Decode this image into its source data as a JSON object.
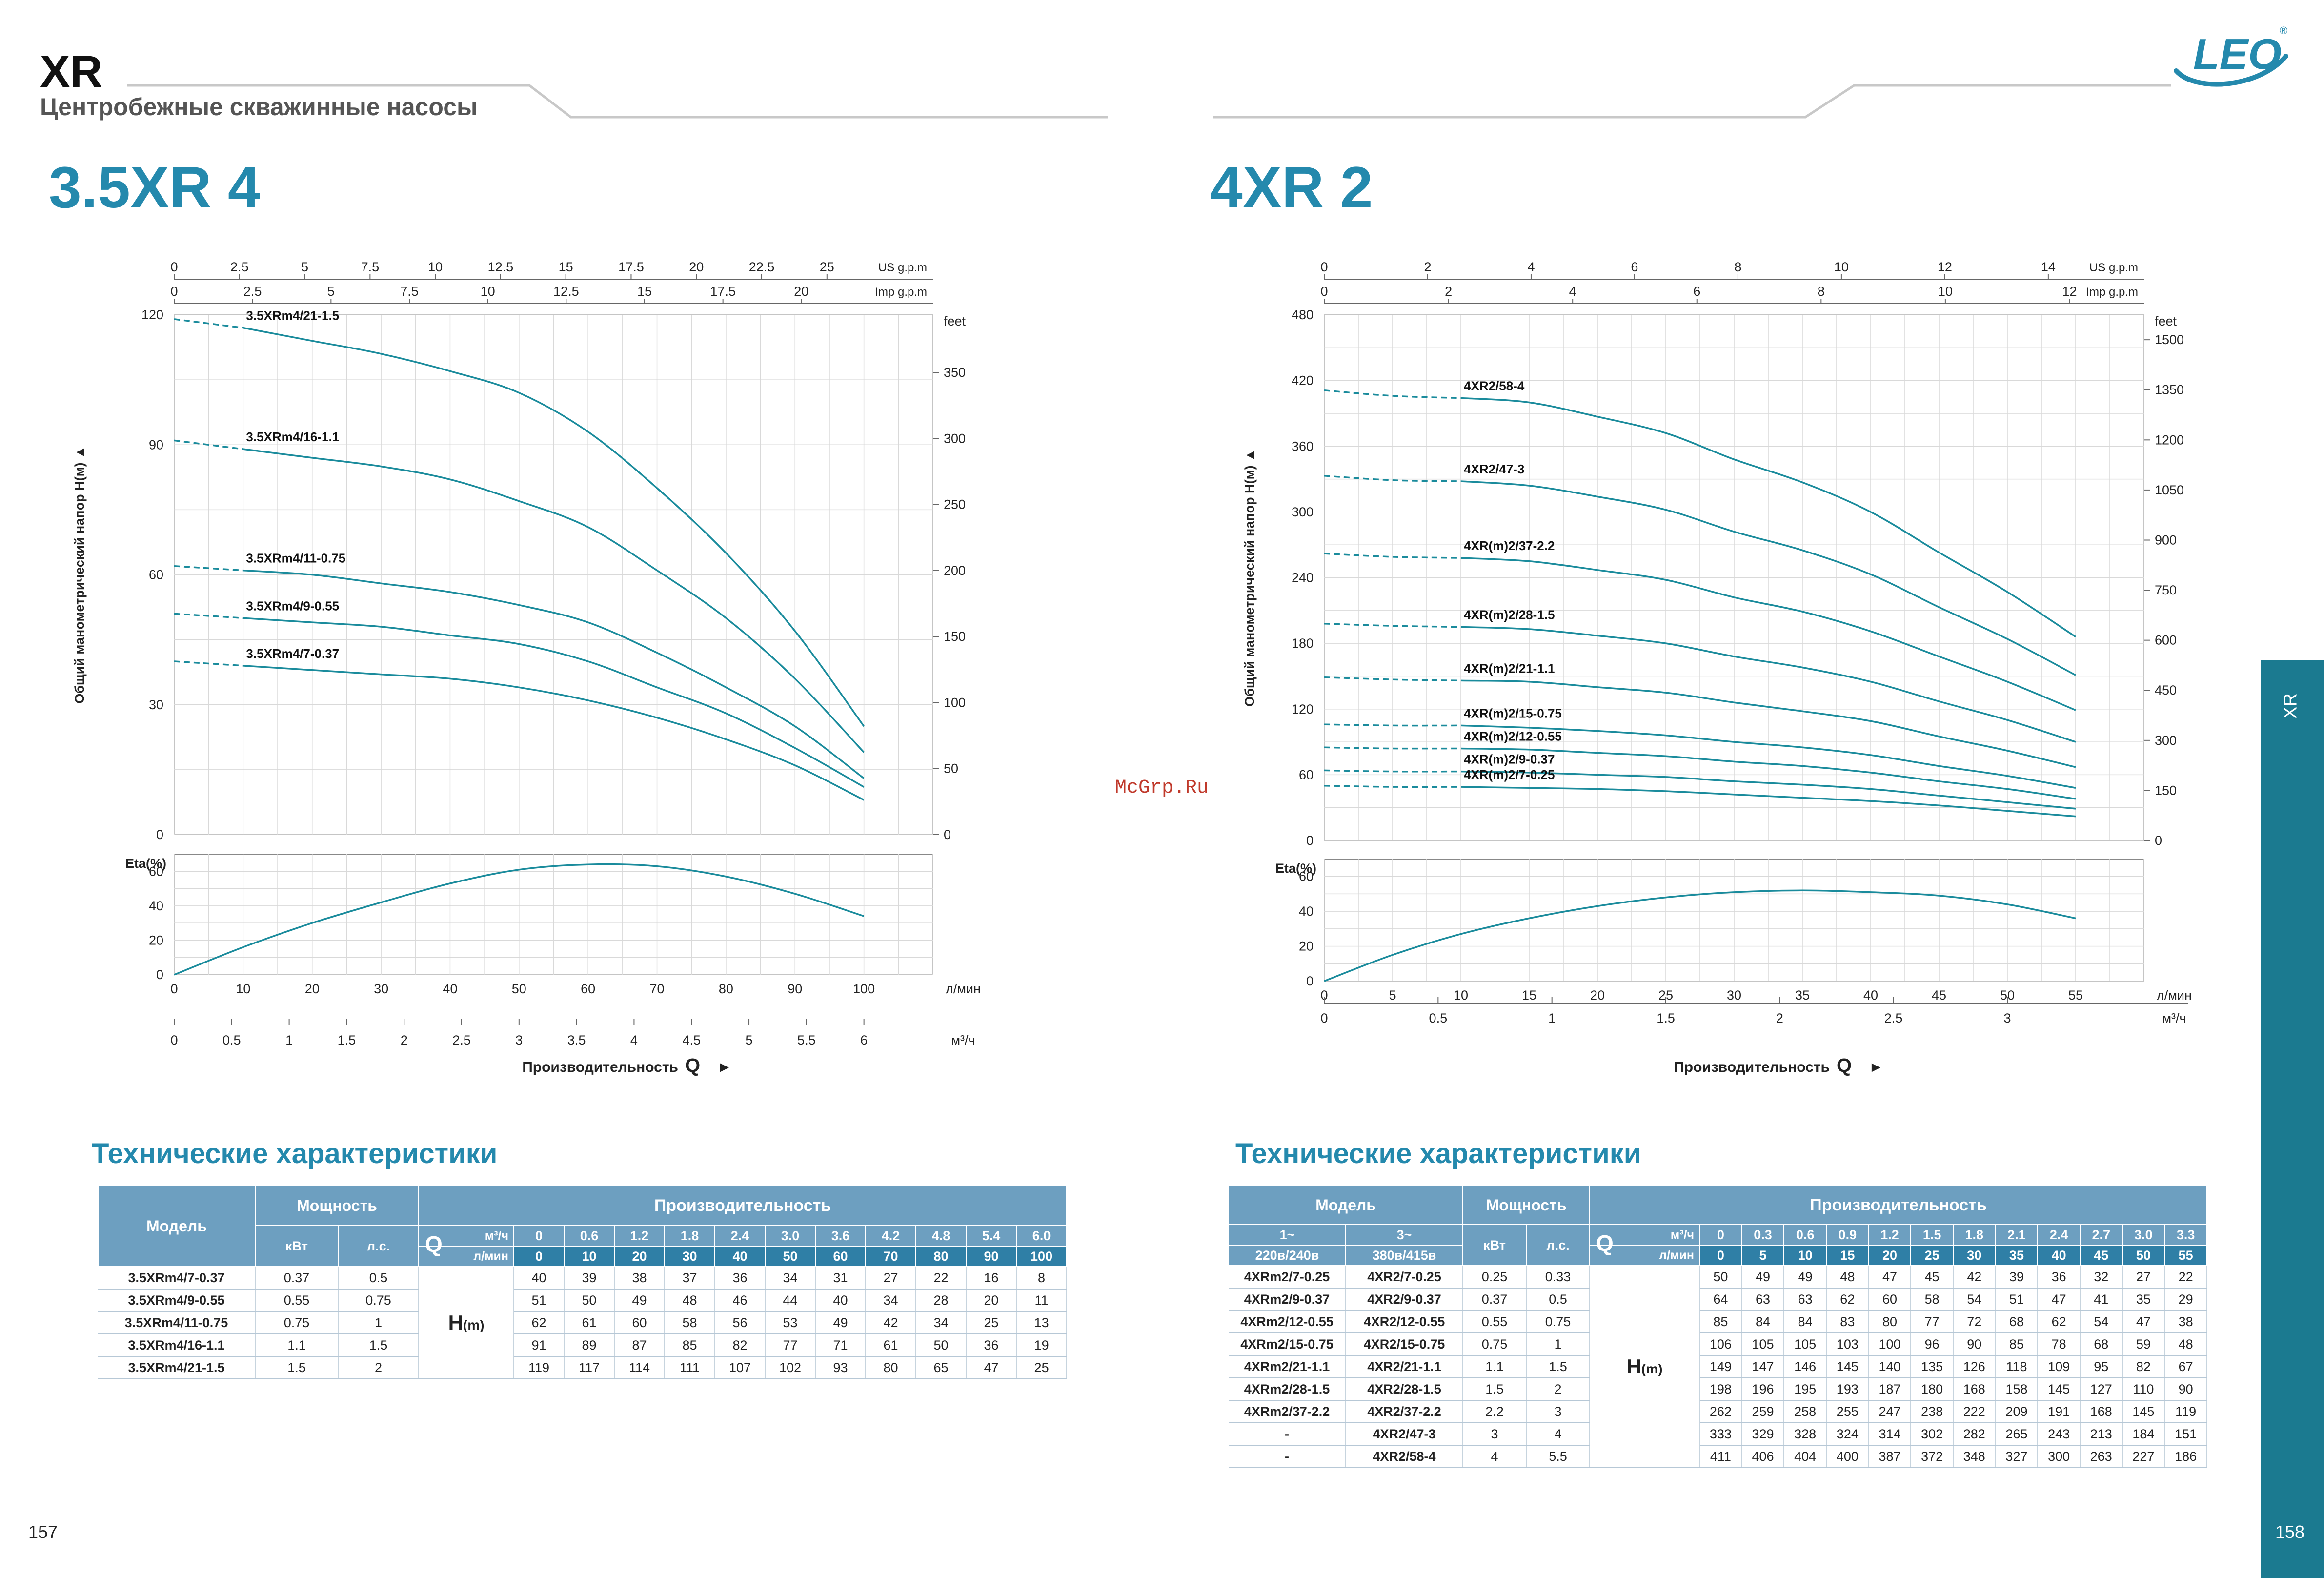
{
  "header": {
    "brand": "XR",
    "subtitle": "Центробежные скважинные насосы",
    "logo_text": "LEO",
    "logo_mark": "®"
  },
  "colors": {
    "accent": "#2489ad",
    "curve": "#1a8b9c",
    "table_header": "#6d9fc0",
    "sidebar": "#1b7a90"
  },
  "watermark": "McGrp.Ru",
  "sidebar": {
    "label": "XR"
  },
  "pages": {
    "left": "157",
    "right": "158"
  },
  "left": {
    "model_title": "3.5XR 4",
    "section_title": "Технические характеристики",
    "chart": {
      "ylabel": "Общий манометрический напор H(м) ▲",
      "xlabel_prefix": "Производительность",
      "xlabel_q": "Q",
      "xlabel_arrow": "►",
      "top_axis1_label": "US g.p.m",
      "top_axis1_ticks": [
        "0",
        "2.5",
        "5",
        "7.5",
        "10",
        "12.5",
        "15",
        "17.5",
        "20",
        "22.5",
        "25"
      ],
      "top_axis2_label": "Imp g.p.m",
      "top_axis2_ticks": [
        "0",
        "2.5",
        "5",
        "7.5",
        "10",
        "12.5",
        "15",
        "17.5",
        "20"
      ],
      "feet_label": "feet",
      "feet_ticks": [
        "0",
        "50",
        "100",
        "150",
        "200",
        "250",
        "300",
        "350"
      ],
      "head_ticks": [
        "0",
        "30",
        "60",
        "90",
        "120"
      ],
      "eta_label": "Eta(%)",
      "eta_ticks": [
        "0",
        "20",
        "40",
        "60"
      ],
      "flow_lmin_label": "л/мин",
      "flow_lmin_ticks": [
        "0",
        "10",
        "20",
        "30",
        "40",
        "50",
        "60",
        "70",
        "80",
        "90",
        "100"
      ],
      "flow_m3h_label": "м³/ч",
      "flow_m3h_ticks": [
        "0",
        "0.5",
        "1",
        "1.5",
        "2",
        "2.5",
        "3",
        "3.5",
        "4",
        "4.5",
        "5",
        "5.5",
        "6"
      ]
    },
    "table": {
      "h_model": "Модель",
      "h_power": "Мощность",
      "h_perf": "Производительность",
      "h_kw": "кВт",
      "h_hp": "л.с.",
      "h_q": "Q",
      "h_m3h": "м³/ч",
      "h_lmin": "л/мин",
      "h_hm": "H",
      "h_hm_unit": "(m)"
    }
  },
  "right": {
    "model_title": "4XR 2",
    "section_title": "Технические характеристики",
    "chart": {
      "ylabel": "Общий манометрический напор H(м) ▲",
      "xlabel_prefix": "Производительность",
      "xlabel_q": "Q",
      "xlabel_arrow": "►",
      "top_axis1_label": "US g.p.m",
      "top_axis1_ticks": [
        "0",
        "2",
        "4",
        "6",
        "8",
        "10",
        "12",
        "14"
      ],
      "top_axis2_label": "Imp g.p.m",
      "top_axis2_ticks": [
        "0",
        "2",
        "4",
        "6",
        "8",
        "10",
        "12"
      ],
      "feet_label": "feet",
      "feet_ticks": [
        "0",
        "150",
        "300",
        "450",
        "600",
        "750",
        "900",
        "1050",
        "1200",
        "1350",
        "1500"
      ],
      "head_ticks": [
        "0",
        "60",
        "120",
        "180",
        "240",
        "300",
        "360",
        "420",
        "480"
      ],
      "eta_label": "Eta(%)",
      "eta_ticks": [
        "0",
        "20",
        "40",
        "60"
      ],
      "flow_lmin_label": "л/мин",
      "flow_lmin_ticks": [
        "0",
        "5",
        "10",
        "15",
        "20",
        "25",
        "30",
        "35",
        "40",
        "45",
        "50",
        "55"
      ],
      "flow_m3h_label": "м³/ч",
      "flow_m3h_ticks": [
        "0",
        "0.5",
        "1",
        "1.5",
        "2",
        "2.5",
        "3"
      ]
    },
    "table": {
      "h_model": "Модель",
      "h_power": "Мощность",
      "h_perf": "Производительность",
      "h_1ph": "1~",
      "h_1ph_v": "220в/240в",
      "h_3ph": "3~",
      "h_3ph_v": "380в/415в",
      "h_kw": "кВт",
      "h_hp": "л.с.",
      "h_q": "Q",
      "h_m3h": "м³/ч",
      "h_lmin": "л/мин",
      "h_hm": "H",
      "h_hm_unit": "(m)"
    }
  },
  "chart_data": [
    {
      "type": "line",
      "title": "3.5XR 4",
      "xlabel": "Производительность Q (л/мин)",
      "ylabel": "Общий манометрический напор H(м)",
      "x": [
        0,
        10,
        20,
        30,
        40,
        50,
        60,
        70,
        80,
        90,
        100
      ],
      "xlim": [
        0,
        110
      ],
      "ylim": [
        0,
        120
      ],
      "series": [
        {
          "name": "3.5XRm4/21-1.5",
          "values": [
            119,
            117,
            114,
            111,
            107,
            102,
            93,
            80,
            65,
            47,
            25
          ]
        },
        {
          "name": "3.5XRm4/16-1.1",
          "values": [
            91,
            89,
            87,
            85,
            82,
            77,
            71,
            61,
            50,
            36,
            19
          ]
        },
        {
          "name": "3.5XRm4/11-0.75",
          "values": [
            62,
            61,
            60,
            58,
            56,
            53,
            49,
            42,
            34,
            25,
            13
          ]
        },
        {
          "name": "3.5XRm4/9-0.55",
          "values": [
            51,
            50,
            49,
            48,
            46,
            44,
            40,
            34,
            28,
            20,
            11
          ]
        },
        {
          "name": "3.5XRm4/7-0.37",
          "values": [
            40,
            39,
            38,
            37,
            36,
            34,
            31,
            27,
            22,
            16,
            8
          ]
        }
      ],
      "efficiency": {
        "name": "Eta(%)",
        "ylim": [
          0,
          70
        ],
        "values": [
          0,
          16,
          30,
          42,
          53,
          61,
          64,
          63,
          57,
          47,
          34
        ]
      }
    },
    {
      "type": "line",
      "title": "4XR 2",
      "xlabel": "Производительность Q (л/мин)",
      "ylabel": "Общий манометрический напор H(м)",
      "x": [
        0,
        5,
        10,
        15,
        20,
        25,
        30,
        35,
        40,
        45,
        50,
        55
      ],
      "xlim": [
        0,
        60
      ],
      "ylim": [
        0,
        480
      ],
      "series": [
        {
          "name": "4XR2/58-4",
          "values": [
            411,
            406,
            404,
            400,
            387,
            372,
            348,
            327,
            300,
            263,
            227,
            186
          ]
        },
        {
          "name": "4XR2/47-3",
          "values": [
            333,
            329,
            328,
            324,
            314,
            302,
            282,
            265,
            243,
            213,
            184,
            151
          ]
        },
        {
          "name": "4XR(m)2/37-2.2",
          "values": [
            262,
            259,
            258,
            255,
            247,
            238,
            222,
            209,
            191,
            168,
            145,
            119
          ]
        },
        {
          "name": "4XR(m)2/28-1.5",
          "values": [
            198,
            196,
            195,
            193,
            187,
            180,
            168,
            158,
            145,
            127,
            110,
            90
          ]
        },
        {
          "name": "4XR(m)2/21-1.1",
          "values": [
            149,
            147,
            146,
            145,
            140,
            135,
            126,
            118,
            109,
            95,
            82,
            67
          ]
        },
        {
          "name": "4XR(m)2/15-0.75",
          "values": [
            106,
            105,
            105,
            103,
            100,
            96,
            90,
            85,
            78,
            68,
            59,
            48
          ]
        },
        {
          "name": "4XR(m)2/12-0.55",
          "values": [
            85,
            84,
            84,
            83,
            80,
            77,
            72,
            68,
            62,
            54,
            47,
            38
          ]
        },
        {
          "name": "4XR(m)2/9-0.37",
          "values": [
            64,
            63,
            63,
            62,
            60,
            58,
            54,
            51,
            47,
            41,
            35,
            29
          ]
        },
        {
          "name": "4XR(m)2/7-0.25",
          "values": [
            50,
            49,
            49,
            48,
            47,
            45,
            42,
            39,
            36,
            32,
            27,
            22
          ]
        }
      ],
      "efficiency": {
        "name": "Eta(%)",
        "ylim": [
          0,
          70
        ],
        "values": [
          0,
          15,
          27,
          36,
          43,
          48,
          51,
          52,
          51,
          49,
          44,
          36
        ]
      }
    }
  ],
  "table_left": {
    "q_m3h": [
      "0",
      "0.6",
      "1.2",
      "1.8",
      "2.4",
      "3.0",
      "3.6",
      "4.2",
      "4.8",
      "5.4",
      "6.0"
    ],
    "q_lmin": [
      "0",
      "10",
      "20",
      "30",
      "40",
      "50",
      "60",
      "70",
      "80",
      "90",
      "100"
    ],
    "rows": [
      {
        "model": "3.5XRm4/7-0.37",
        "kw": "0.37",
        "hp": "0.5",
        "h": [
          "40",
          "39",
          "38",
          "37",
          "36",
          "34",
          "31",
          "27",
          "22",
          "16",
          "8"
        ]
      },
      {
        "model": "3.5XRm4/9-0.55",
        "kw": "0.55",
        "hp": "0.75",
        "h": [
          "51",
          "50",
          "49",
          "48",
          "46",
          "44",
          "40",
          "34",
          "28",
          "20",
          "11"
        ]
      },
      {
        "model": "3.5XRm4/11-0.75",
        "kw": "0.75",
        "hp": "1",
        "h": [
          "62",
          "61",
          "60",
          "58",
          "56",
          "53",
          "49",
          "42",
          "34",
          "25",
          "13"
        ]
      },
      {
        "model": "3.5XRm4/16-1.1",
        "kw": "1.1",
        "hp": "1.5",
        "h": [
          "91",
          "89",
          "87",
          "85",
          "82",
          "77",
          "71",
          "61",
          "50",
          "36",
          "19"
        ]
      },
      {
        "model": "3.5XRm4/21-1.5",
        "kw": "1.5",
        "hp": "2",
        "h": [
          "119",
          "117",
          "114",
          "111",
          "107",
          "102",
          "93",
          "80",
          "65",
          "47",
          "25"
        ]
      }
    ]
  },
  "table_right": {
    "q_m3h": [
      "0",
      "0.3",
      "0.6",
      "0.9",
      "1.2",
      "1.5",
      "1.8",
      "2.1",
      "2.4",
      "2.7",
      "3.0",
      "3.3"
    ],
    "q_lmin": [
      "0",
      "5",
      "10",
      "15",
      "20",
      "25",
      "30",
      "35",
      "40",
      "45",
      "50",
      "55"
    ],
    "rows": [
      {
        "m1": "4XRm2/7-0.25",
        "m3": "4XR2/7-0.25",
        "kw": "0.25",
        "hp": "0.33",
        "h": [
          "50",
          "49",
          "49",
          "48",
          "47",
          "45",
          "42",
          "39",
          "36",
          "32",
          "27",
          "22"
        ]
      },
      {
        "m1": "4XRm2/9-0.37",
        "m3": "4XR2/9-0.37",
        "kw": "0.37",
        "hp": "0.5",
        "h": [
          "64",
          "63",
          "63",
          "62",
          "60",
          "58",
          "54",
          "51",
          "47",
          "41",
          "35",
          "29"
        ]
      },
      {
        "m1": "4XRm2/12-0.55",
        "m3": "4XR2/12-0.55",
        "kw": "0.55",
        "hp": "0.75",
        "h": [
          "85",
          "84",
          "84",
          "83",
          "80",
          "77",
          "72",
          "68",
          "62",
          "54",
          "47",
          "38"
        ]
      },
      {
        "m1": "4XRm2/15-0.75",
        "m3": "4XR2/15-0.75",
        "kw": "0.75",
        "hp": "1",
        "h": [
          "106",
          "105",
          "105",
          "103",
          "100",
          "96",
          "90",
          "85",
          "78",
          "68",
          "59",
          "48"
        ]
      },
      {
        "m1": "4XRm2/21-1.1",
        "m3": "4XR2/21-1.1",
        "kw": "1.1",
        "hp": "1.5",
        "h": [
          "149",
          "147",
          "146",
          "145",
          "140",
          "135",
          "126",
          "118",
          "109",
          "95",
          "82",
          "67"
        ]
      },
      {
        "m1": "4XRm2/28-1.5",
        "m3": "4XR2/28-1.5",
        "kw": "1.5",
        "hp": "2",
        "h": [
          "198",
          "196",
          "195",
          "193",
          "187",
          "180",
          "168",
          "158",
          "145",
          "127",
          "110",
          "90"
        ]
      },
      {
        "m1": "4XRm2/37-2.2",
        "m3": "4XR2/37-2.2",
        "kw": "2.2",
        "hp": "3",
        "h": [
          "262",
          "259",
          "258",
          "255",
          "247",
          "238",
          "222",
          "209",
          "191",
          "168",
          "145",
          "119"
        ]
      },
      {
        "m1": "-",
        "m3": "4XR2/47-3",
        "kw": "3",
        "hp": "4",
        "h": [
          "333",
          "329",
          "328",
          "324",
          "314",
          "302",
          "282",
          "265",
          "243",
          "213",
          "184",
          "151"
        ]
      },
      {
        "m1": "-",
        "m3": "4XR2/58-4",
        "kw": "4",
        "hp": "5.5",
        "h": [
          "411",
          "406",
          "404",
          "400",
          "387",
          "372",
          "348",
          "327",
          "300",
          "263",
          "227",
          "186"
        ]
      }
    ]
  }
}
